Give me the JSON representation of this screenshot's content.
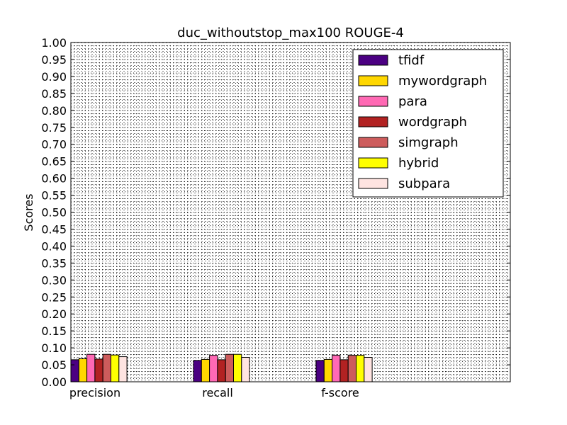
{
  "chart_data": {
    "type": "bar",
    "title": "duc_withoutstop_max100 ROUGE-4",
    "xlabel": "",
    "ylabel": "Scores",
    "ylim": [
      0,
      1.0
    ],
    "yticks": [
      "0.00",
      "0.05",
      "0.10",
      "0.15",
      "0.20",
      "0.25",
      "0.30",
      "0.35",
      "0.40",
      "0.45",
      "0.50",
      "0.55",
      "0.60",
      "0.65",
      "0.70",
      "0.75",
      "0.80",
      "0.85",
      "0.90",
      "0.95",
      "1.00"
    ],
    "categories": [
      "precision",
      "recall",
      "f-score"
    ],
    "grid": true,
    "legend_position": "top-right",
    "series": [
      {
        "name": "tfidf",
        "color": "#4b0082",
        "values": [
          0.065,
          0.063,
          0.063
        ]
      },
      {
        "name": "mywordgraph",
        "color": "#ffd700",
        "values": [
          0.068,
          0.066,
          0.066
        ]
      },
      {
        "name": "para",
        "color": "#ff69b4",
        "values": [
          0.081,
          0.078,
          0.078
        ]
      },
      {
        "name": "wordgraph",
        "color": "#b22222",
        "values": [
          0.067,
          0.065,
          0.065
        ]
      },
      {
        "name": "simgraph",
        "color": "#cd5c5c",
        "values": [
          0.081,
          0.081,
          0.078
        ]
      },
      {
        "name": "hybrid",
        "color": "#ffff00",
        "values": [
          0.079,
          0.081,
          0.078
        ]
      },
      {
        "name": "subpara",
        "color": "#ffe4e1",
        "values": [
          0.074,
          0.072,
          0.072
        ]
      }
    ]
  }
}
